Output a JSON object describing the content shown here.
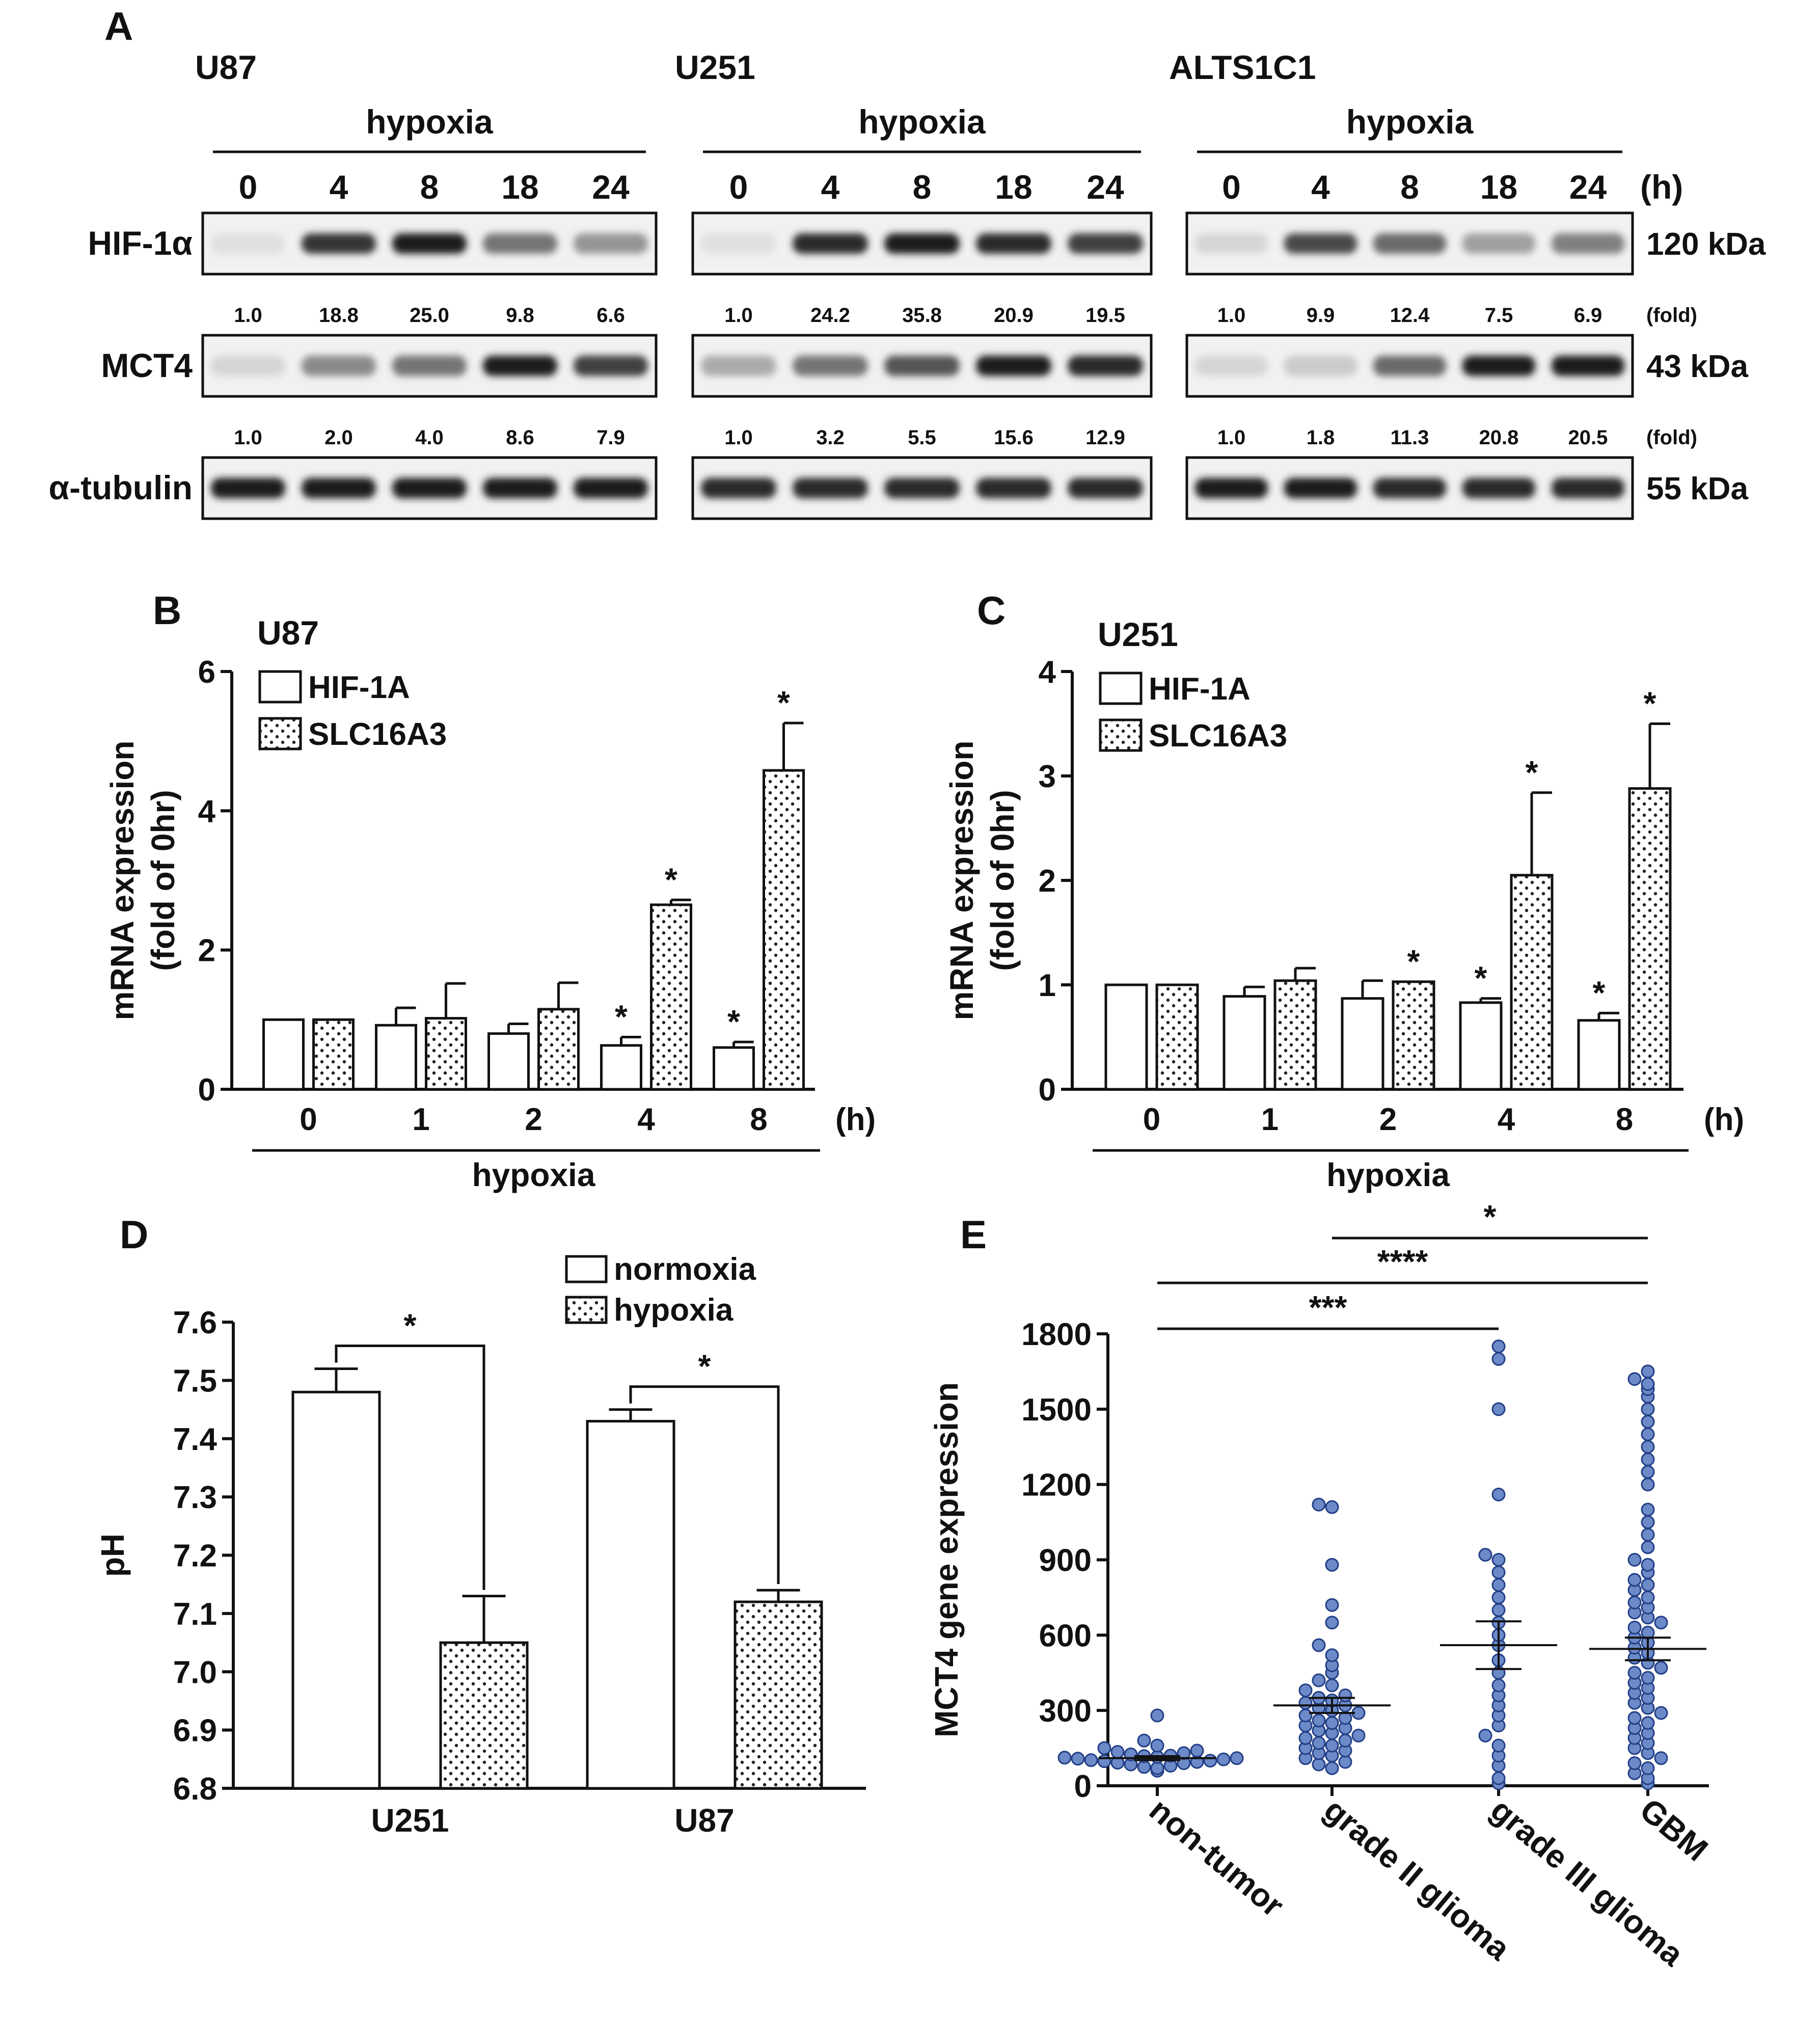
{
  "panel_labels": {
    "A": "A",
    "B": "B",
    "C": "C",
    "D": "D",
    "E": "E"
  },
  "western": {
    "hours_unit": "(h)",
    "fold_unit": "(fold)",
    "condition": "hypoxia",
    "lanes": [
      "0",
      "4",
      "8",
      "18",
      "24"
    ],
    "rows": [
      {
        "label": "HIF-1α",
        "size": "120 kDa"
      },
      {
        "label": "MCT4",
        "size": "43 kDa"
      },
      {
        "label": "α-tubulin",
        "size": "55 kDa"
      }
    ],
    "cells": [
      {
        "name": "U87",
        "hif_fold": [
          "1.0",
          "18.8",
          "25.0",
          "9.8",
          "6.6"
        ],
        "mct4_fold": [
          "1.0",
          "2.0",
          "4.0",
          "8.6",
          "7.9"
        ],
        "hif_intensity": [
          0.05,
          0.85,
          0.95,
          0.55,
          0.4
        ],
        "mct4_intensity": [
          0.1,
          0.45,
          0.55,
          0.95,
          0.8
        ],
        "tub_intensity": [
          0.95,
          0.95,
          0.95,
          0.95,
          0.95
        ]
      },
      {
        "name": "U251",
        "hif_fold": [
          "1.0",
          "24.2",
          "35.8",
          "20.9",
          "19.5"
        ],
        "mct4_fold": [
          "1.0",
          "3.2",
          "5.5",
          "15.6",
          "12.9"
        ],
        "hif_intensity": [
          0.05,
          0.9,
          0.97,
          0.9,
          0.8
        ],
        "mct4_intensity": [
          0.3,
          0.55,
          0.7,
          0.95,
          0.9
        ],
        "tub_intensity": [
          0.9,
          0.9,
          0.9,
          0.9,
          0.9
        ]
      },
      {
        "name": "ALTS1C1",
        "hif_fold": [
          "1.0",
          "9.9",
          "12.4",
          "7.5",
          "6.9"
        ],
        "mct4_fold": [
          "1.0",
          "1.8",
          "11.3",
          "20.8",
          "20.5"
        ],
        "hif_intensity": [
          0.1,
          0.75,
          0.6,
          0.35,
          0.5
        ],
        "mct4_intensity": [
          0.1,
          0.15,
          0.6,
          0.95,
          0.97
        ],
        "tub_intensity": [
          0.95,
          0.95,
          0.9,
          0.9,
          0.9
        ]
      }
    ]
  },
  "chart_data": [
    {
      "id": "B",
      "type": "bar",
      "title": "U87",
      "categories": [
        "0",
        "1",
        "2",
        "4",
        "8"
      ],
      "xlabel": "hypoxia",
      "x_unit": "(h)",
      "ylabel": [
        "mRNA expression",
        "(fold of 0hr)"
      ],
      "ylim": [
        0,
        6
      ],
      "yticks": [
        0,
        2,
        4,
        6
      ],
      "series": [
        {
          "name": "HIF-1A",
          "pattern": "open",
          "values": [
            1.0,
            0.92,
            0.8,
            0.63,
            0.6
          ],
          "errors": [
            0,
            0.25,
            0.14,
            0.12,
            0.08
          ],
          "sig": [
            "",
            "",
            "",
            "*",
            "*"
          ]
        },
        {
          "name": "SLC16A3",
          "pattern": "dotted",
          "values": [
            1.0,
            1.02,
            1.15,
            2.65,
            4.58
          ],
          "errors": [
            0,
            0.5,
            0.38,
            0.07,
            0.68
          ],
          "sig": [
            "",
            "",
            "",
            "*",
            "*"
          ]
        }
      ]
    },
    {
      "id": "C",
      "type": "bar",
      "title": "U251",
      "categories": [
        "0",
        "1",
        "2",
        "4",
        "8"
      ],
      "xlabel": "hypoxia",
      "x_unit": "(h)",
      "ylabel": [
        "mRNA expression",
        "(fold of 0hr)"
      ],
      "ylim": [
        0,
        4
      ],
      "yticks": [
        0,
        1,
        2,
        3,
        4
      ],
      "series": [
        {
          "name": "HIF-1A",
          "pattern": "open",
          "values": [
            1.0,
            0.89,
            0.87,
            0.83,
            0.66
          ],
          "errors": [
            0,
            0.09,
            0.17,
            0.04,
            0.07
          ],
          "sig": [
            "",
            "",
            "",
            "*",
            "*"
          ]
        },
        {
          "name": "SLC16A3",
          "pattern": "dotted",
          "values": [
            1.0,
            1.04,
            1.03,
            2.05,
            2.88
          ],
          "errors": [
            0,
            0.12,
            0.0,
            0.79,
            0.62
          ],
          "sig": [
            "",
            "",
            "*",
            "*",
            "*"
          ]
        }
      ]
    },
    {
      "id": "D",
      "type": "bar",
      "title": "",
      "categories": [
        "U251",
        "U87"
      ],
      "xlabel": "",
      "ylabel": "pH",
      "ylim": [
        6.8,
        7.6
      ],
      "yticks": [
        6.8,
        6.9,
        7.0,
        7.1,
        7.2,
        7.3,
        7.4,
        7.5,
        7.6
      ],
      "ytick_labels": [
        "6.8",
        "6.9",
        "7.0",
        "7.1",
        "7.2",
        "7.3",
        "7.4",
        "7.5",
        "7.6"
      ],
      "series": [
        {
          "name": "normoxia",
          "pattern": "open",
          "values": [
            7.48,
            7.43
          ],
          "errors": [
            0.04,
            0.02
          ]
        },
        {
          "name": "hypoxia",
          "pattern": "dotted",
          "values": [
            7.05,
            7.12
          ],
          "errors": [
            0.08,
            0.02
          ]
        }
      ],
      "brackets": [
        "*",
        "*"
      ]
    },
    {
      "id": "E",
      "type": "scatter",
      "categories": [
        "non-tumor",
        "grade II glioma",
        "grade III glioma",
        "GBM"
      ],
      "ylabel": "MCT4 gene expression",
      "ylim": [
        0,
        1800
      ],
      "yticks": [
        0,
        300,
        600,
        900,
        1200,
        1500,
        1800
      ],
      "means": [
        110,
        320,
        560,
        545
      ],
      "sem": [
        8,
        30,
        95,
        45
      ],
      "points": [
        [
          60,
          70,
          75,
          80,
          85,
          90,
          92,
          95,
          98,
          100,
          102,
          105,
          108,
          110,
          112,
          115,
          118,
          120,
          125,
          130,
          135,
          140,
          150,
          160,
          180,
          280
        ],
        [
          70,
          85,
          95,
          110,
          120,
          130,
          140,
          150,
          160,
          170,
          180,
          190,
          200,
          210,
          220,
          230,
          240,
          250,
          260,
          270,
          280,
          290,
          300,
          310,
          320,
          330,
          340,
          350,
          360,
          380,
          400,
          420,
          450,
          480,
          520,
          560,
          650,
          720,
          880,
          1110,
          1120
        ],
        [
          10,
          30,
          80,
          120,
          160,
          200,
          240,
          280,
          320,
          360,
          400,
          450,
          500,
          560,
          600,
          650,
          700,
          750,
          800,
          850,
          900,
          920,
          1160,
          1500,
          1700,
          1750
        ],
        [
          10,
          30,
          50,
          70,
          90,
          110,
          130,
          150,
          170,
          190,
          210,
          230,
          250,
          270,
          290,
          310,
          330,
          350,
          370,
          390,
          410,
          430,
          450,
          470,
          490,
          510,
          530,
          550,
          570,
          590,
          610,
          630,
          650,
          670,
          690,
          710,
          730,
          750,
          780,
          800,
          820,
          850,
          880,
          900,
          950,
          1000,
          1050,
          1100,
          1200,
          1250,
          1300,
          1350,
          1400,
          1450,
          1500,
          1550,
          1580,
          1600,
          1620,
          1650
        ]
      ],
      "comparisons": [
        {
          "from": 0,
          "to": 2,
          "label": "***"
        },
        {
          "from": 0,
          "to": 3,
          "label": "****"
        },
        {
          "from": 1,
          "to": 3,
          "label": "*"
        }
      ],
      "point_color": "#6c8ac8",
      "point_edge": "#233f86"
    }
  ]
}
